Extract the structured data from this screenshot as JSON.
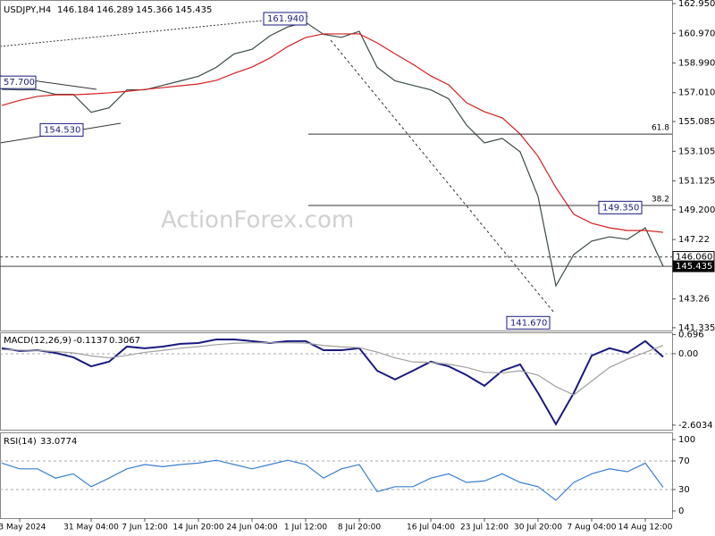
{
  "header": {
    "symbol": "USDJPY,H4",
    "ohlc": [
      146.184,
      146.289,
      145.366,
      145.435
    ]
  },
  "watermark": "ActionForex.com",
  "chart_data": [
    {
      "type": "line",
      "ylim": [
        141.15,
        163.19
      ],
      "yticks": [
        {
          "value": 162.95,
          "label": "162.950"
        },
        {
          "value": 160.97,
          "label": "160.970"
        },
        {
          "value": 158.99,
          "label": "158.990"
        },
        {
          "value": 157.01,
          "label": "157.010"
        },
        155.085,
        153.105,
        151.125,
        {
          "value": 149.2,
          "label": "149.200"
        },
        147.22,
        143.26,
        141.335
      ],
      "series": [
        {
          "name": "USDJPY",
          "color": "#3b4a4a",
          "values": [
            157.23,
            157.2,
            157.2,
            156.9,
            156.9,
            155.7,
            156.0,
            157.2,
            157.2,
            157.5,
            157.8,
            158.1,
            158.7,
            159.6,
            159.9,
            160.8,
            161.4,
            161.7,
            160.9,
            160.7,
            161.1,
            158.7,
            157.8,
            157.5,
            157.2,
            156.6,
            154.85,
            153.66,
            153.96,
            153.06,
            150.09,
            144.13,
            146.22,
            147.11,
            147.4,
            147.23,
            148.0,
            145.435
          ]
        },
        {
          "name": "MA",
          "color": "#d42020",
          "values": [
            156.16,
            156.5,
            156.76,
            156.87,
            156.87,
            156.93,
            157.0,
            157.1,
            157.23,
            157.35,
            157.47,
            157.59,
            157.83,
            158.3,
            158.72,
            159.32,
            160.09,
            160.69,
            160.93,
            160.93,
            160.93,
            160.33,
            159.6,
            158.9,
            158.13,
            157.53,
            156.34,
            155.74,
            155.33,
            154.25,
            152.77,
            150.68,
            148.9,
            148.3,
            148.0,
            147.82,
            147.82,
            147.7
          ]
        }
      ],
      "levels": [
        {
          "value": 146.06,
          "label": "146.060",
          "style": "dashed"
        },
        {
          "value": 145.435,
          "label": "145.435",
          "style": "solid"
        }
      ],
      "fib_levels": [
        {
          "value": 154.25,
          "label": "61.8"
        },
        {
          "value": 149.49,
          "label": "38.2"
        }
      ],
      "annotations": [
        {
          "value": 161.94,
          "label": "161.940"
        },
        {
          "value": 157.7,
          "label": "57.700"
        },
        {
          "value": 154.53,
          "label": "154.530"
        },
        {
          "value": 149.35,
          "label": "149.350"
        },
        {
          "value": 141.67,
          "label": "141.670"
        }
      ]
    },
    {
      "type": "line",
      "title": "MACD(12,26,9)",
      "readout": [
        -0.1137,
        0.3067
      ],
      "ylim": [
        -2.77,
        0.78
      ],
      "yticks": [
        0.696,
        {
          "value": 0,
          "label": "0.00"
        },
        -2.6034
      ],
      "levels": [
        0
      ],
      "series": [
        {
          "name": "MACD",
          "color": "#1a1a80",
          "values": [
            0.2,
            0.1,
            0.13,
            0.03,
            -0.13,
            -0.46,
            -0.29,
            0.26,
            0.2,
            0.26,
            0.36,
            0.39,
            0.52,
            0.52,
            0.46,
            0.39,
            0.46,
            0.46,
            0.13,
            0.13,
            0.2,
            -0.62,
            -0.94,
            -0.62,
            -0.29,
            -0.46,
            -0.78,
            -1.17,
            -0.62,
            -0.39,
            -1.43,
            -2.57,
            -1.43,
            -0.07,
            0.2,
            0.03,
            0.46,
            -0.1137
          ]
        },
        {
          "name": "Signal",
          "color": "#a0a0a0",
          "values": [
            0.15,
            0.13,
            0.12,
            0.08,
            0.03,
            -0.08,
            -0.15,
            -0.06,
            0.05,
            0.12,
            0.2,
            0.26,
            0.33,
            0.38,
            0.4,
            0.4,
            0.4,
            0.39,
            0.3,
            0.25,
            0.22,
            0.06,
            -0.15,
            -0.3,
            -0.32,
            -0.38,
            -0.5,
            -0.68,
            -0.7,
            -0.62,
            -0.78,
            -1.2,
            -1.5,
            -1.0,
            -0.5,
            -0.2,
            0.05,
            0.3067
          ]
        }
      ]
    },
    {
      "type": "line",
      "title": "RSI(14)",
      "readout": [
        33.0774
      ],
      "ylim": [
        -10,
        110
      ],
      "yticks": [
        100,
        70,
        30,
        0
      ],
      "levels": [
        70,
        30
      ],
      "categories": [
        null,
        "23 May 2024",
        null,
        null,
        null,
        "31 May 04:00",
        null,
        null,
        "7 Jun 12:00",
        null,
        null,
        "14 Jun 20:00",
        null,
        null,
        "24 Jun 04:00",
        null,
        null,
        "1 Jul 12:00",
        null,
        null,
        "8 Jul 20:00",
        null,
        null,
        null,
        "16 Jul 04:00",
        null,
        null,
        "23 Jul 12:00",
        null,
        null,
        "30 Jul 20:00",
        null,
        null,
        "7 Aug 04:00",
        null,
        null,
        "14 Aug 12:00",
        null
      ],
      "series": [
        {
          "name": "RSI",
          "color": "#3a7fd0",
          "values": [
            67,
            59,
            59,
            46,
            52,
            34,
            46,
            59,
            65,
            62,
            65,
            67,
            71,
            65,
            59,
            65,
            71,
            65,
            46,
            59,
            65,
            27,
            34,
            34,
            46,
            52,
            40,
            42,
            52,
            40,
            34,
            15,
            40,
            52,
            59,
            55,
            67,
            33.0774
          ]
        }
      ]
    }
  ]
}
